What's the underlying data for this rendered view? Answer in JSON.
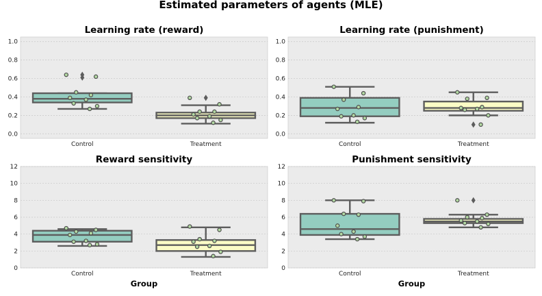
{
  "figure_title": "Estimated parameters of agents (MLE)",
  "colors": {
    "control_fill": "#94cdc0",
    "treatment_fill": "#fbfcc6",
    "box_edge": "#5d5d5d",
    "point_fill": "#b3d9a3",
    "point_edge": "#4d4d4d",
    "plot_bg": "#ebebeb"
  },
  "chart_data": [
    {
      "type": "box",
      "title": "Learning rate (reward)",
      "xlabel": "",
      "categories": [
        "Control",
        "Treatment"
      ],
      "ylim": [
        -0.05,
        1.05
      ],
      "yticks": [
        0.0,
        0.2,
        0.4,
        0.6,
        0.8,
        1.0
      ],
      "ytick_labels": [
        "0.0",
        "0.2",
        "0.4",
        "0.6",
        "0.8",
        "1.0"
      ],
      "boxes": [
        {
          "q1": 0.34,
          "median": 0.38,
          "q3": 0.44,
          "whisker_low": 0.27,
          "whisker_high": 0.44,
          "outliers": [
            0.61,
            0.64
          ]
        },
        {
          "q1": 0.17,
          "median": 0.2,
          "q3": 0.23,
          "whisker_low": 0.11,
          "whisker_high": 0.31,
          "outliers": [
            0.39
          ]
        }
      ],
      "points": [
        [
          0.64,
          0.62,
          0.45,
          0.42,
          0.39,
          0.37,
          0.33,
          0.3,
          0.27
        ],
        [
          0.39,
          0.32,
          0.24,
          0.24,
          0.21,
          0.19,
          0.17,
          0.15,
          0.12
        ]
      ]
    },
    {
      "type": "box",
      "title": "Learning rate (punishment)",
      "xlabel": "",
      "categories": [
        "Control",
        "Treatment"
      ],
      "ylim": [
        -0.05,
        1.05
      ],
      "yticks": [
        0.0,
        0.2,
        0.4,
        0.6,
        0.8,
        1.0
      ],
      "ytick_labels": [
        "0.0",
        "0.2",
        "0.4",
        "0.6",
        "0.8",
        "1.0"
      ],
      "boxes": [
        {
          "q1": 0.19,
          "median": 0.28,
          "q3": 0.39,
          "whisker_low": 0.12,
          "whisker_high": 0.51,
          "outliers": []
        },
        {
          "q1": 0.25,
          "median": 0.28,
          "q3": 0.35,
          "whisker_low": 0.2,
          "whisker_high": 0.45,
          "outliers": [
            0.1
          ]
        }
      ],
      "points": [
        [
          0.51,
          0.44,
          0.37,
          0.29,
          0.27,
          0.2,
          0.19,
          0.17,
          0.13
        ],
        [
          0.45,
          0.39,
          0.38,
          0.29,
          0.28,
          0.27,
          0.26,
          0.2,
          0.1
        ]
      ]
    },
    {
      "type": "box",
      "title": "Reward sensitivity",
      "xlabel": "Group",
      "categories": [
        "Control",
        "Treatment"
      ],
      "ylim": [
        0,
        12
      ],
      "yticks": [
        0,
        2,
        4,
        6,
        8,
        10,
        12
      ],
      "ytick_labels": [
        "0",
        "2",
        "4",
        "6",
        "8",
        "10",
        "12"
      ],
      "boxes": [
        {
          "q1": 3.1,
          "median": 3.9,
          "q3": 4.4,
          "whisker_low": 2.6,
          "whisker_high": 4.6,
          "outliers": []
        },
        {
          "q1": 2.0,
          "median": 2.7,
          "q3": 3.3,
          "whisker_low": 1.3,
          "whisker_high": 4.8,
          "outliers": []
        }
      ],
      "points": [
        [
          4.7,
          4.5,
          4.3,
          4.1,
          3.9,
          3.2,
          3.1,
          2.8,
          2.7
        ],
        [
          4.9,
          4.5,
          3.4,
          3.2,
          3.1,
          2.6,
          2.5,
          1.9,
          1.4
        ]
      ]
    },
    {
      "type": "box",
      "title": "Punishment sensitivity",
      "xlabel": "Group",
      "categories": [
        "Control",
        "Treatment"
      ],
      "ylim": [
        0,
        12
      ],
      "yticks": [
        0,
        2,
        4,
        6,
        8,
        10,
        12
      ],
      "ytick_labels": [
        "0",
        "2",
        "4",
        "6",
        "8",
        "10",
        "12"
      ],
      "boxes": [
        {
          "q1": 3.9,
          "median": 4.6,
          "q3": 6.4,
          "whisker_low": 3.4,
          "whisker_high": 8.0,
          "outliers": []
        },
        {
          "q1": 5.3,
          "median": 5.5,
          "q3": 5.8,
          "whisker_low": 4.8,
          "whisker_high": 6.3,
          "outliers": [
            8.0
          ]
        }
      ],
      "points": [
        [
          8.0,
          7.9,
          6.4,
          6.3,
          5.0,
          4.3,
          4.0,
          3.7,
          3.4
        ],
        [
          8.0,
          6.3,
          6.0,
          5.9,
          5.6,
          5.5,
          5.3,
          5.2,
          4.8
        ]
      ]
    }
  ]
}
